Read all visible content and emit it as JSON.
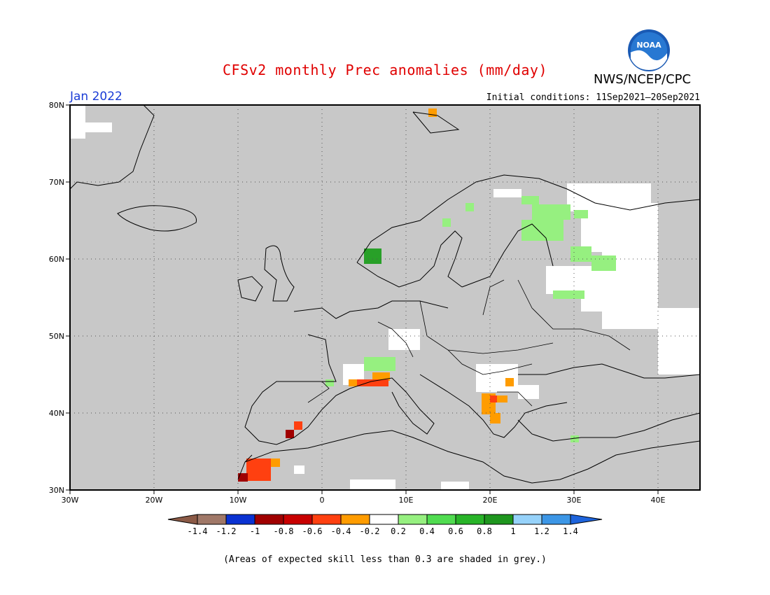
{
  "header": {
    "title": "CFSv2 monthly Prec anomalies (mm/day)",
    "org": "NWS/NCEP/CPC",
    "month": "Jan 2022",
    "initial_conditions": "Initial conditions: 11Sep2021–20Sep2021",
    "logo_text": "NOAA"
  },
  "map": {
    "region": "Europe",
    "lon_range": [
      -30,
      45
    ],
    "lat_range": [
      30,
      80
    ],
    "lat_labels": [
      "80N",
      "70N",
      "60N",
      "50N",
      "40N",
      "30N"
    ],
    "lon_labels": [
      "30W",
      "20W",
      "10W",
      "0",
      "10E",
      "20E",
      "30E",
      "40E"
    ],
    "grid": "dotted",
    "background_color": "#c8c8c8"
  },
  "colorbar": {
    "tick_labels": [
      "-1.4",
      "-1.2",
      "-1",
      "-0.8",
      "-0.6",
      "-0.4",
      "-0.2",
      "0.2",
      "0.4",
      "0.6",
      "0.8",
      "1",
      "1.2",
      "1.4"
    ],
    "colors": [
      "#8b5a46",
      "#a07868",
      "#0a32d2",
      "#a00000",
      "#c80000",
      "#ff4010",
      "#ff9c00",
      "#ffffff",
      "#96f080",
      "#50dc50",
      "#28b428",
      "#1e961e",
      "#96d2fa",
      "#3c96e6",
      "#1e64dc"
    ]
  },
  "footnote": "(Areas of expected skill less than 0.3 are shaded in grey.)"
}
